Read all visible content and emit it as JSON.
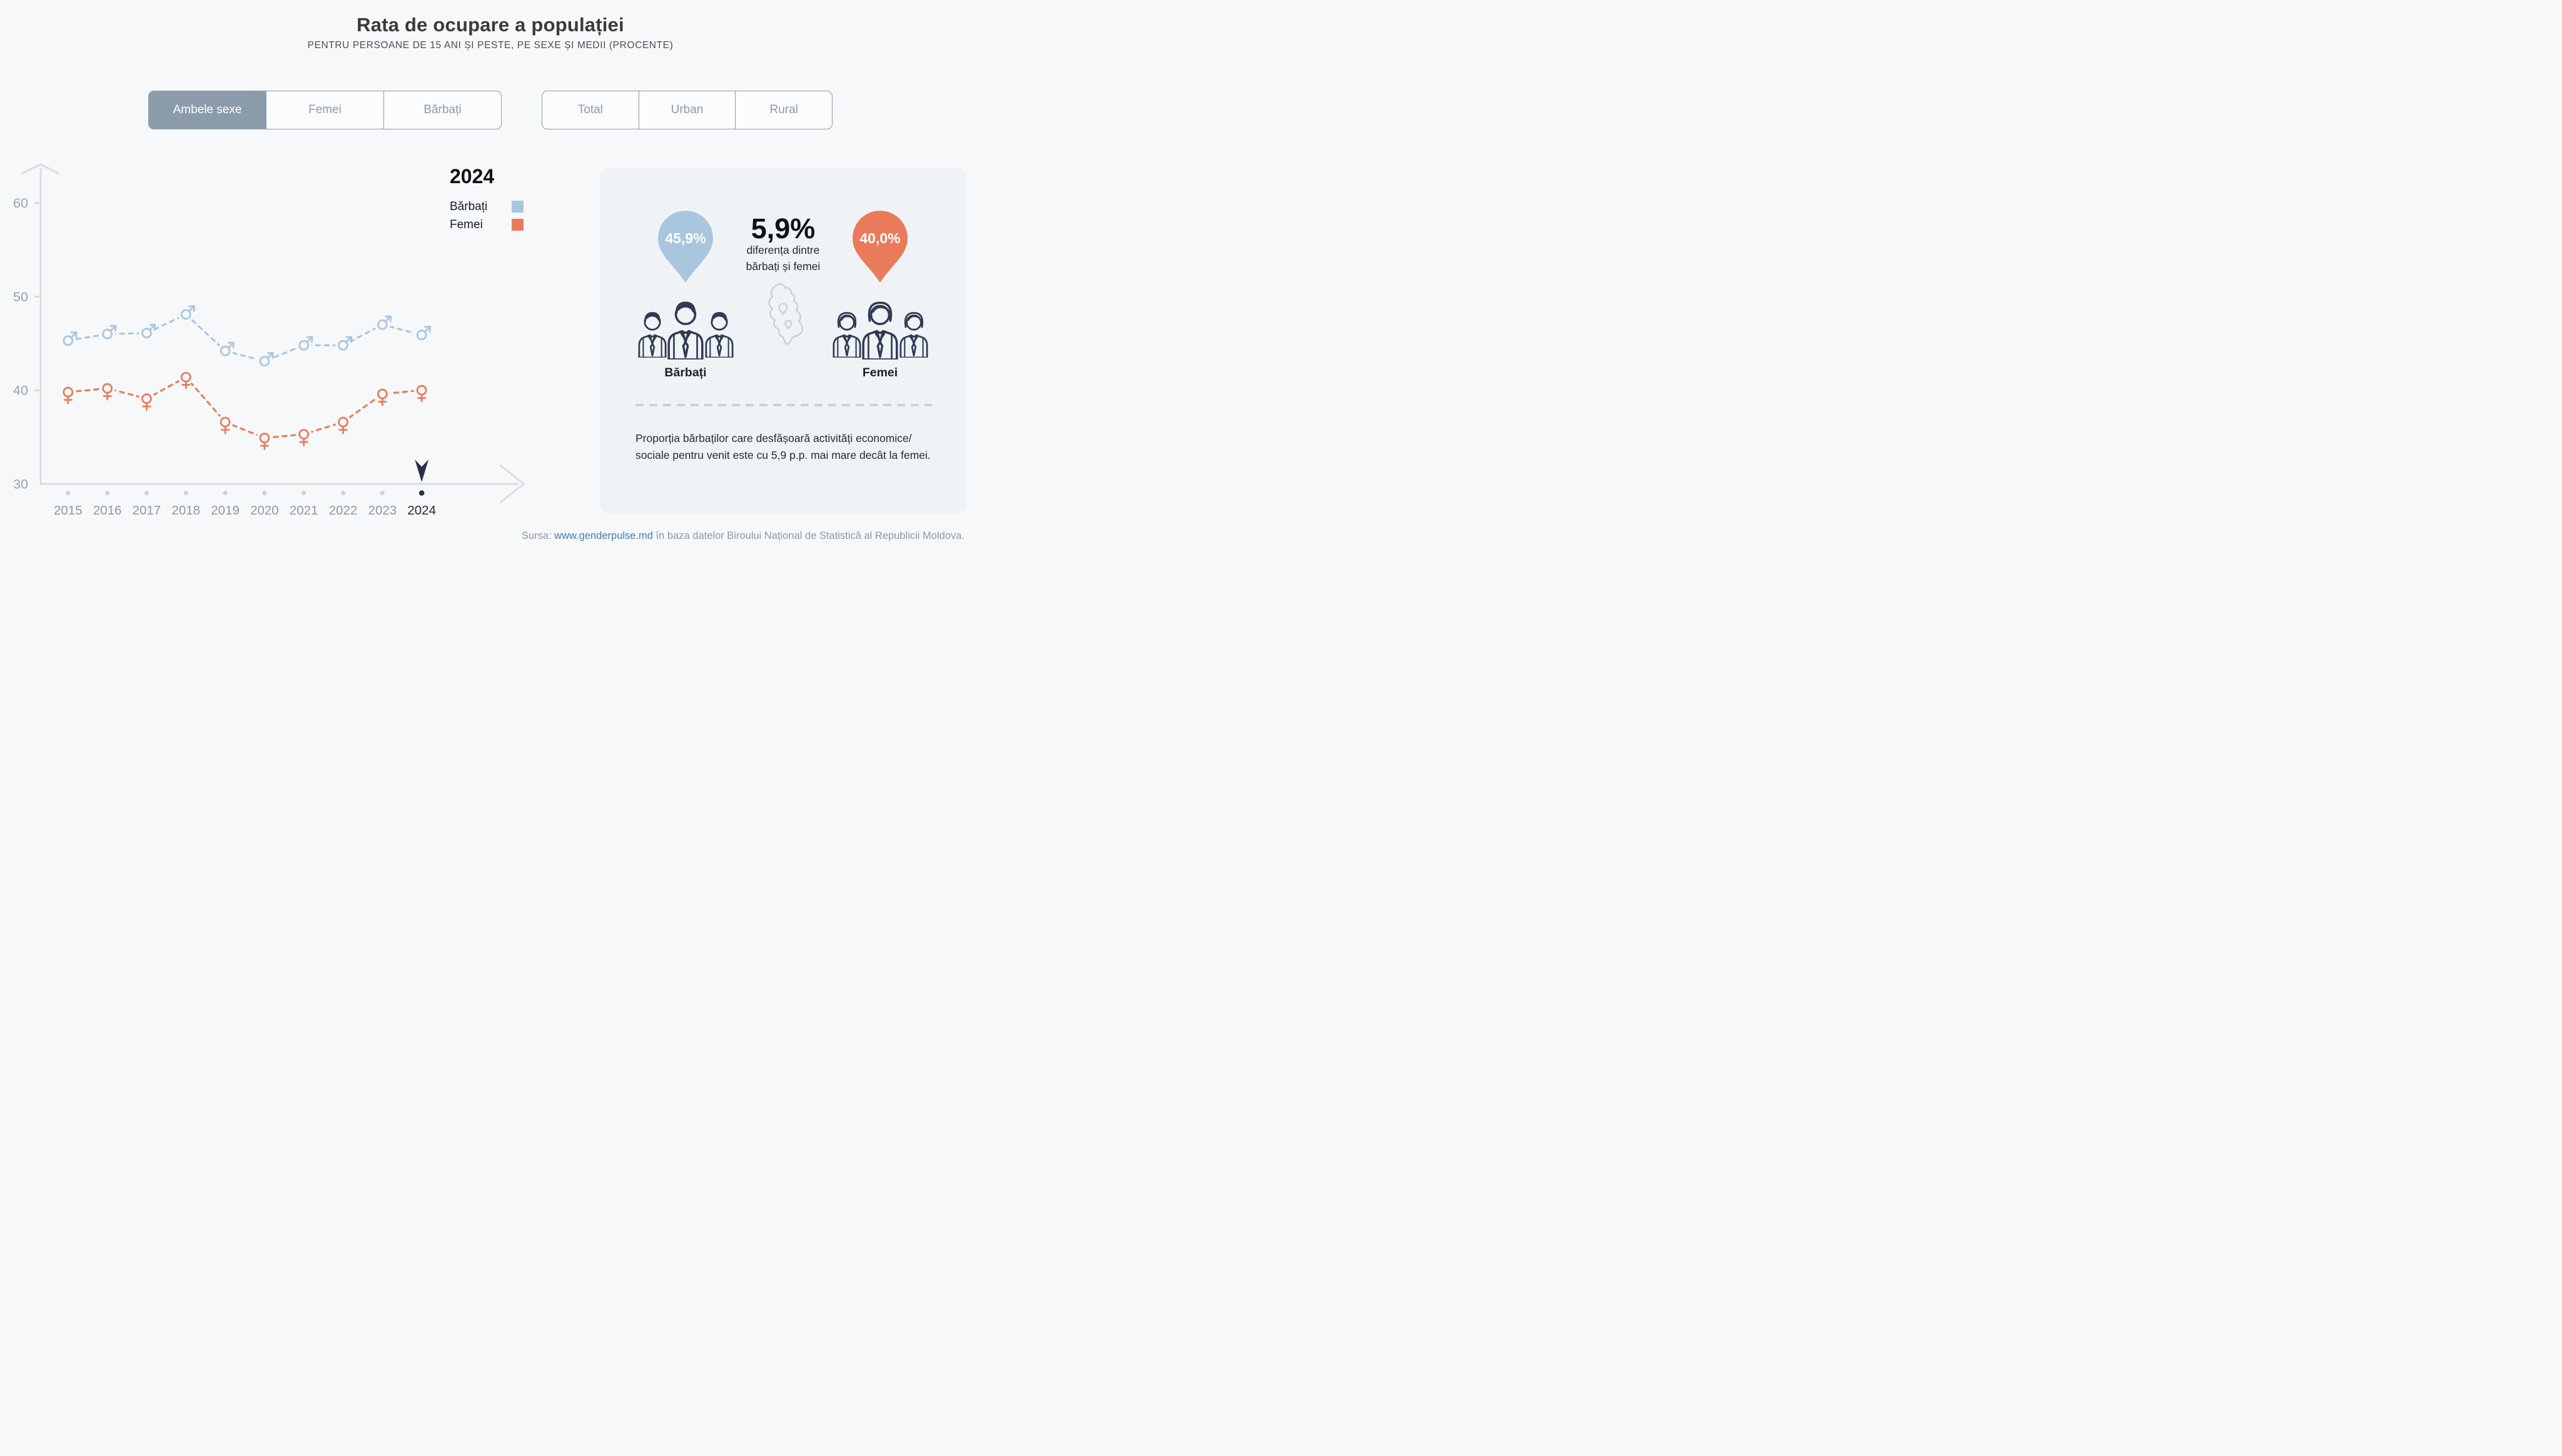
{
  "header": {
    "title": "Rata de ocupare a populației",
    "subtitle": "PENTRU PERSOANE DE 15 ANI ȘI PESTE, PE SEXE ȘI MEDII (PROCENTE)"
  },
  "controls": {
    "sex_tabs": [
      {
        "label": "Ambele sexe",
        "selected": true
      },
      {
        "label": "Femei",
        "selected": false
      },
      {
        "label": "Bărbați",
        "selected": false
      }
    ],
    "area_tabs": [
      {
        "label": "Total",
        "selected": false
      },
      {
        "label": "Urban",
        "selected": false
      },
      {
        "label": "Rural",
        "selected": false
      }
    ]
  },
  "legend": {
    "year": "2024",
    "items": [
      {
        "label": "Bărbați",
        "color": "#A9C6DF"
      },
      {
        "label": "Femei",
        "color": "#E97B5A"
      }
    ]
  },
  "chart_data": {
    "type": "line",
    "line_style": "dashed",
    "x": [
      2015,
      2016,
      2017,
      2018,
      2019,
      2020,
      2021,
      2022,
      2023,
      2024
    ],
    "series": [
      {
        "name": "Bărbați",
        "color": "#A9C6DF",
        "marker": "male",
        "values": [
          45.3,
          46.0,
          46.1,
          48.1,
          44.2,
          43.1,
          44.8,
          44.8,
          47.0,
          45.9
        ]
      },
      {
        "name": "Femei",
        "color": "#E97B5A",
        "marker": "female",
        "values": [
          39.8,
          40.2,
          39.1,
          41.4,
          36.6,
          34.9,
          35.3,
          36.6,
          39.6,
          40.0
        ]
      }
    ],
    "yticks": [
      60,
      50,
      40,
      30
    ],
    "ylim": [
      30,
      63
    ],
    "grid": false,
    "highlight_x": 2024,
    "axis_color": "#D8DDE3",
    "tick_label_color": "#97A3AF",
    "highlight_color": "#27324B"
  },
  "infopanel": {
    "male_pin": {
      "value": "45,9%",
      "color": "#A9C6DF"
    },
    "female_pin": {
      "value": "40,0%",
      "color": "#E97B5A"
    },
    "diff": {
      "value": "5,9%",
      "line1": "diferența dintre",
      "line2": "bărbați și femei"
    },
    "male_label": "Bărbați",
    "female_label": "Femei",
    "note": "Proporția bărbaților care desfășoară activități economice/ sociale pentru venit este cu 5,9 p.p. mai mare decât la femei."
  },
  "footer": {
    "prefix": "Sursa: ",
    "link": "www.genderpulse.md",
    "suffix": " în baza datelor Biroului Național de Statistică al Republicii Moldova."
  }
}
